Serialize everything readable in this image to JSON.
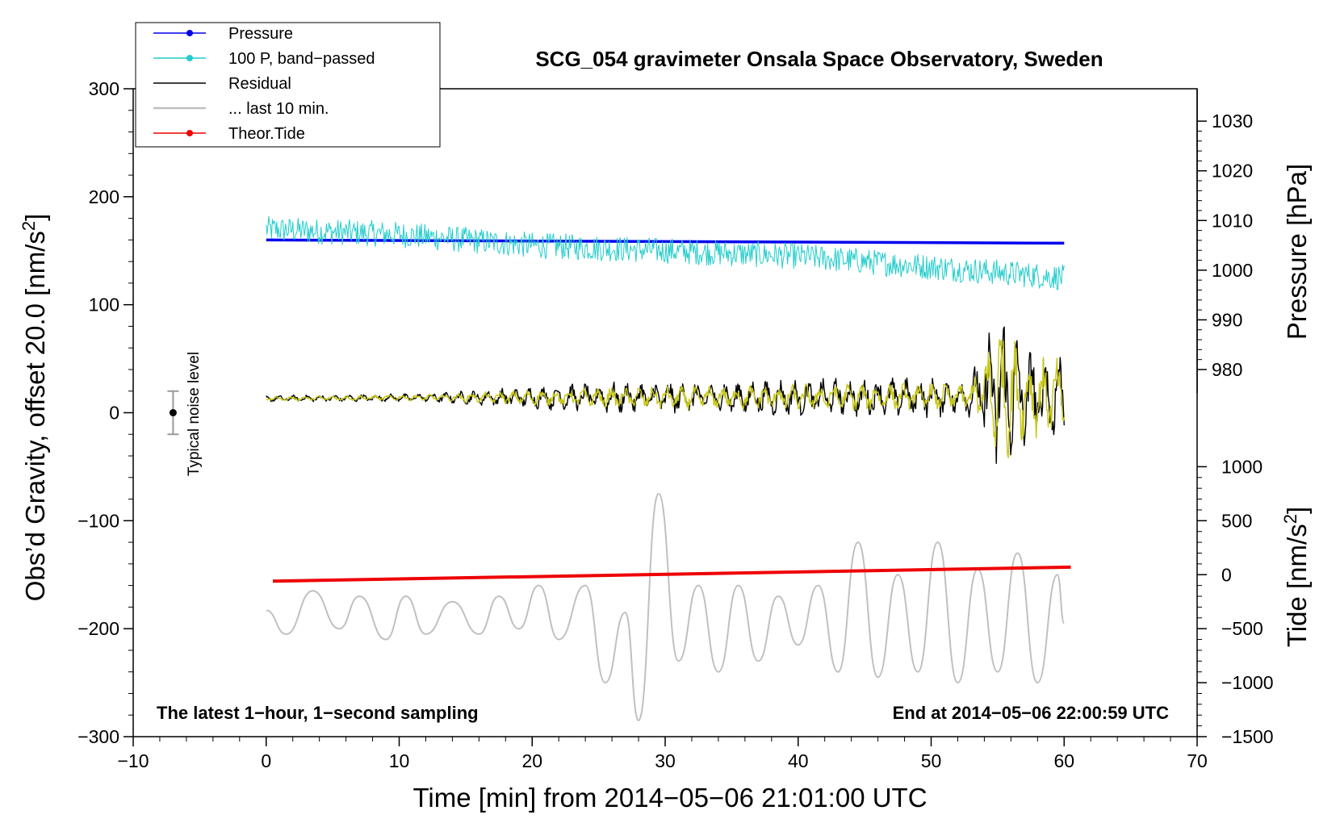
{
  "chart_data": {
    "type": "line",
    "title": "SCG_054 gravimeter Onsala Space Observatory, Sweden",
    "xlabel": "Time [min] from 2014−05−06 21:01:00 UTC",
    "ylabel_left": "Obs’d Gravity, offset 20.0 [nm/s",
    "ylabel_left_sup": "2",
    "ylabel_left_end": "]",
    "ylabel_right_pressure": "Pressure [hPa]",
    "ylabel_right_tide": "Tide [nm/s",
    "ylabel_right_tide_sup": "2",
    "ylabel_right_tide_end": "]",
    "xlim": [
      -10,
      70
    ],
    "ylim_left": [
      -300,
      300
    ],
    "x_ticks": [
      -10,
      0,
      10,
      20,
      30,
      40,
      50,
      60,
      70
    ],
    "x_tick_labels": [
      "−10",
      "0",
      "10",
      "20",
      "30",
      "40",
      "50",
      "60",
      "70"
    ],
    "y_left_ticks": [
      300,
      200,
      100,
      0,
      -100,
      -200,
      -300
    ],
    "y_left_tick_labels": [
      "300",
      "200",
      "100",
      "0",
      "−100",
      "−200",
      "−300"
    ],
    "pressure_axis": {
      "ticks": [
        1030,
        1020,
        1010,
        1000,
        990,
        980
      ],
      "tick_labels": [
        "1030",
        "1020",
        "1010",
        "1000",
        "990",
        "980"
      ],
      "left_equiv": [
        270,
        224,
        178,
        132,
        86,
        40
      ]
    },
    "tide_axis": {
      "ticks": [
        1000,
        500,
        0,
        -500,
        -1000,
        -1500
      ],
      "tick_labels": [
        "1000",
        "500",
        "0",
        "−500",
        "−1000",
        "−1500"
      ],
      "left_equiv": [
        -50,
        -100,
        -150,
        -200,
        -250,
        -300
      ]
    },
    "legend": {
      "position": "top-left",
      "entries": [
        {
          "label": "Pressure",
          "color": "#0000ee",
          "marker": true
        },
        {
          "label": "100 P, band−passed",
          "color": "#22cccc",
          "marker": true
        },
        {
          "label": "Residual",
          "color": "#000000",
          "marker": false
        },
        {
          "label": "... last 10 min.",
          "color": "#c0c0c0",
          "marker": false
        },
        {
          "label": "Theor.Tide",
          "color": "#ee0000",
          "marker": true
        }
      ]
    },
    "noise_bar": {
      "label": "Typical noise level",
      "x": -7,
      "center": 0,
      "half_width": 20
    },
    "note_left": "The latest 1−hour, 1−second sampling",
    "note_right": "End at 2014−05−06 22:00:59 UTC",
    "series": [
      {
        "name": "Pressure",
        "color": "#0000ee",
        "x": [
          0,
          20,
          40,
          60
        ],
        "values": [
          160,
          159,
          158,
          157
        ]
      },
      {
        "name": "100 P, band−passed",
        "color": "#22cccc",
        "x": [
          0,
          10,
          20,
          30,
          40,
          50,
          60
        ],
        "values": [
          170,
          165,
          155,
          150,
          145,
          135,
          125
        ],
        "noise_amp": 12
      },
      {
        "name": "Residual",
        "color": "#000000",
        "x": [
          0,
          12,
          25,
          40,
          53,
          55,
          57,
          60
        ],
        "values": [
          13,
          14,
          14,
          14,
          15,
          20,
          15,
          15
        ],
        "amp": [
          3,
          4,
          15,
          18,
          20,
          85,
          50,
          45
        ]
      },
      {
        "name": "Residual (filtered)",
        "color": "#c8c81a",
        "x": [
          0,
          12,
          25,
          40,
          53,
          55,
          57,
          60
        ],
        "values": [
          13,
          14,
          14,
          14,
          15,
          20,
          15,
          15
        ],
        "amp": [
          2,
          3,
          10,
          13,
          14,
          75,
          40,
          35
        ]
      },
      {
        "name": "... last 10 min.",
        "color": "#c0c0c0",
        "x": [
          0,
          1.5,
          3.5,
          5.5,
          7,
          9,
          10.5,
          12,
          14,
          16,
          17.5,
          19,
          20.5,
          22,
          24,
          25.5,
          27,
          28,
          29.5,
          31,
          32.5,
          34,
          35.5,
          37,
          38.5,
          40,
          41.5,
          43,
          44.5,
          46,
          47.5,
          49,
          50.5,
          52,
          53.5,
          55,
          56.5,
          58,
          59.5,
          60
        ],
        "values": [
          -183,
          -205,
          -165,
          -200,
          -170,
          -210,
          -170,
          -205,
          -175,
          -205,
          -170,
          -200,
          -160,
          -210,
          -160,
          -250,
          -185,
          -285,
          -75,
          -230,
          -160,
          -240,
          -160,
          -230,
          -170,
          -215,
          -160,
          -240,
          -120,
          -245,
          -150,
          -240,
          -120,
          -250,
          -145,
          -240,
          -130,
          -250,
          -150,
          -195
        ]
      },
      {
        "name": "Theor.Tide",
        "color": "#ee0000",
        "x": [
          0.5,
          60.5
        ],
        "values": [
          -156,
          -143
        ]
      }
    ]
  }
}
